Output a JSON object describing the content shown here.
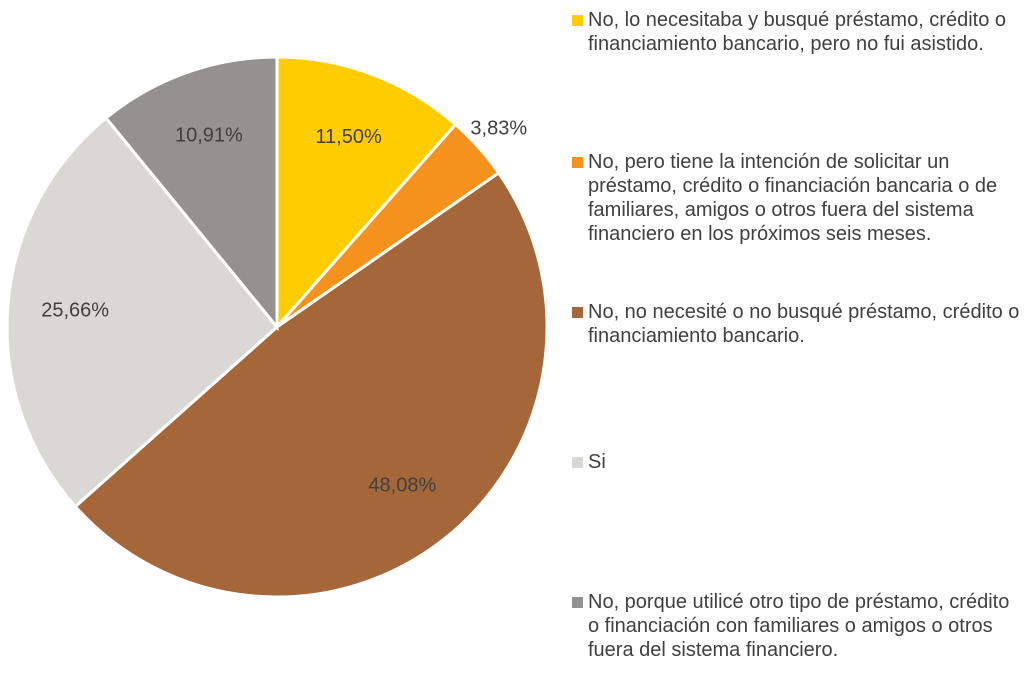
{
  "chart_data": {
    "type": "pie",
    "categories": [
      "No, lo necesitaba y busqué préstamo, crédito o financiamiento bancario, pero no fui asistido.",
      "No, pero tiene la intención de solicitar un préstamo, crédito o financiación bancaria o de familiares, amigos o otros fuera del sistema financiero en los próximos seis meses.",
      "No, no necesité o no busqué préstamo, crédito o financiamiento bancario.",
      "Si",
      "No, porque utilicé otro tipo de préstamo, crédito o financiación con familiares o amigos o otros fuera del sistema financiero."
    ],
    "values": [
      11.5,
      3.83,
      48.08,
      25.66,
      10.91
    ],
    "value_labels": [
      "11,50%",
      "3,83%",
      "48,08%",
      "25,66%",
      "10,91%"
    ],
    "colors": [
      "#ffcc00",
      "#f5921e",
      "#a5673a",
      "#d9d8d5",
      "#949290"
    ],
    "legend": "right"
  }
}
